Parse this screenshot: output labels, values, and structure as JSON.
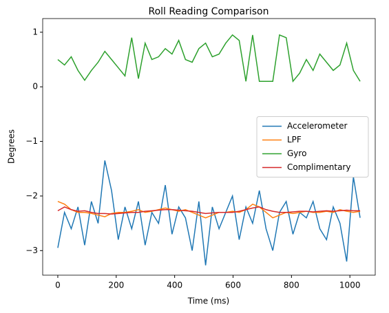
{
  "chart_data": {
    "type": "line",
    "title": "Roll Reading Comparison",
    "xlabel": "Time (ms)",
    "ylabel": "Degrees",
    "x": [
      0,
      23,
      46,
      69,
      92,
      115,
      138,
      161,
      184,
      207,
      230,
      253,
      276,
      299,
      322,
      345,
      368,
      391,
      414,
      437,
      460,
      483,
      506,
      529,
      552,
      575,
      598,
      621,
      644,
      667,
      690,
      713,
      736,
      759,
      782,
      805,
      828,
      851,
      874,
      897,
      920,
      943,
      966,
      989,
      1012,
      1035
    ],
    "series": [
      {
        "name": "Accelerometer",
        "color": "#1f77b4",
        "values": [
          -2.95,
          -2.3,
          -2.6,
          -2.2,
          -2.9,
          -2.1,
          -2.5,
          -1.35,
          -1.9,
          -2.8,
          -2.2,
          -2.6,
          -2.1,
          -2.9,
          -2.3,
          -2.5,
          -1.8,
          -2.7,
          -2.2,
          -2.4,
          -3.0,
          -2.1,
          -3.27,
          -2.2,
          -2.6,
          -2.3,
          -2.0,
          -2.8,
          -2.2,
          -2.5,
          -1.9,
          -2.6,
          -3.0,
          -2.3,
          -2.1,
          -2.7,
          -2.3,
          -2.4,
          -2.1,
          -2.6,
          -2.8,
          -2.2,
          -2.5,
          -3.2,
          -1.65,
          -2.4
        ]
      },
      {
        "name": "LPF",
        "color": "#ff7f0e",
        "values": [
          -2.1,
          -2.15,
          -2.25,
          -2.3,
          -2.3,
          -2.32,
          -2.35,
          -2.38,
          -2.32,
          -2.3,
          -2.3,
          -2.28,
          -2.25,
          -2.3,
          -2.28,
          -2.25,
          -2.22,
          -2.25,
          -2.28,
          -2.25,
          -2.3,
          -2.35,
          -2.4,
          -2.35,
          -2.3,
          -2.3,
          -2.28,
          -2.3,
          -2.25,
          -2.15,
          -2.2,
          -2.3,
          -2.4,
          -2.35,
          -2.3,
          -2.32,
          -2.3,
          -2.28,
          -2.3,
          -2.3,
          -2.28,
          -2.3,
          -2.25,
          -2.28,
          -2.3,
          -2.28
        ]
      },
      {
        "name": "Gyro",
        "color": "#2ca02c",
        "values": [
          0.5,
          0.4,
          0.55,
          0.3,
          0.12,
          0.3,
          0.45,
          0.65,
          0.5,
          0.35,
          0.2,
          0.9,
          0.15,
          0.8,
          0.5,
          0.55,
          0.7,
          0.6,
          0.85,
          0.5,
          0.45,
          0.7,
          0.8,
          0.55,
          0.6,
          0.8,
          0.95,
          0.85,
          0.1,
          0.95,
          0.1,
          0.1,
          0.1,
          0.95,
          0.9,
          0.1,
          0.25,
          0.5,
          0.3,
          0.6,
          0.45,
          0.3,
          0.4,
          0.8,
          0.3,
          0.1
        ]
      },
      {
        "name": "Complimentary",
        "color": "#d62728",
        "values": [
          -2.27,
          -2.2,
          -2.25,
          -2.28,
          -2.27,
          -2.3,
          -2.32,
          -2.32,
          -2.33,
          -2.32,
          -2.31,
          -2.3,
          -2.3,
          -2.28,
          -2.27,
          -2.26,
          -2.25,
          -2.25,
          -2.26,
          -2.27,
          -2.28,
          -2.3,
          -2.32,
          -2.31,
          -2.3,
          -2.3,
          -2.3,
          -2.28,
          -2.25,
          -2.22,
          -2.2,
          -2.25,
          -2.28,
          -2.3,
          -2.3,
          -2.29,
          -2.28,
          -2.28,
          -2.29,
          -2.28,
          -2.27,
          -2.28,
          -2.27,
          -2.26,
          -2.27,
          -2.27
        ]
      }
    ],
    "xlim": [
      -51.75,
      1086.75
    ],
    "ylim": [
      -3.45,
      1.25
    ],
    "xticks": [
      0,
      200,
      400,
      600,
      800,
      1000
    ],
    "yticks": [
      {
        "value": -3,
        "label": "−3"
      },
      {
        "value": -2,
        "label": "−2"
      },
      {
        "value": -1,
        "label": "−1"
      },
      0,
      1
    ],
    "legend": "center right"
  }
}
